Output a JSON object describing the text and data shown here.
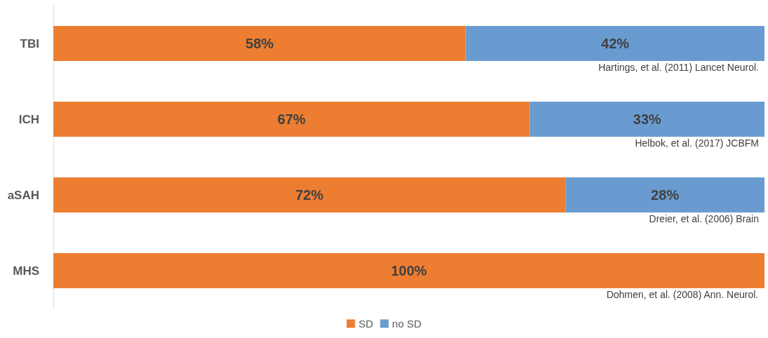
{
  "chart_data": {
    "type": "bar",
    "orientation": "horizontal",
    "stacked": true,
    "categories": [
      "TBI",
      "ICH",
      "aSAH",
      "MHS"
    ],
    "series": [
      {
        "name": "SD",
        "color": "#ed7d31",
        "values": [
          58,
          67,
          72,
          100
        ],
        "value_labels": [
          "58%",
          "67%",
          "72%",
          "100%"
        ]
      },
      {
        "name": "no SD",
        "color": "#6a9bd0",
        "values": [
          42,
          33,
          28,
          null
        ],
        "value_labels": [
          "42%",
          "33%",
          "28%",
          null
        ]
      }
    ],
    "xlim": [
      0,
      100
    ],
    "tick_labels": "y",
    "legend": "bottom",
    "annotations": [
      "Hartings, et al. (2011) Lancet Neurol.",
      "Helbok, et al. (2017) JCBFM",
      "Dreier, et al. (2006) Brain",
      "Dohmen, et al. (2008) Ann. Neurol."
    ]
  }
}
